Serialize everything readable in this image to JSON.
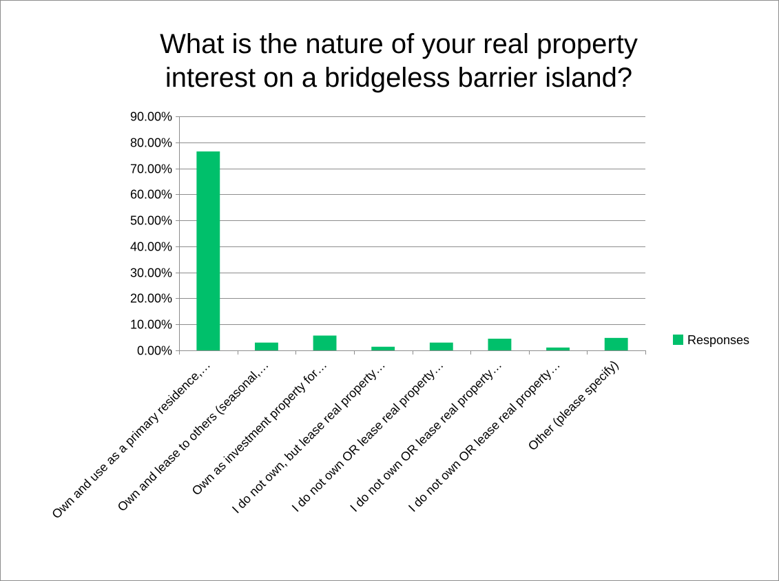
{
  "chart_data": {
    "type": "bar",
    "title": "What is the nature of your real property interest on a bridgeless barrier island?",
    "title_lines": [
      "What is the nature of your real property",
      "interest on a bridgeless barrier island?"
    ],
    "categories": [
      "Own and use as a primary residence,…",
      "Own and lease to others (seasonal,…",
      "Own as investment property for…",
      "I do not own, but lease real property…",
      "I do not own OR lease real property…",
      "I do not own OR lease real property…",
      "I do not own OR lease real property…",
      "Other (please specify)"
    ],
    "series": [
      {
        "name": "Responses",
        "values": [
          76.5,
          3.0,
          5.7,
          1.4,
          3.0,
          4.5,
          1.1,
          4.8
        ]
      }
    ],
    "ylim": [
      0,
      90
    ],
    "ytick_step": 10,
    "ytick_labels": [
      "0.00%",
      "10.00%",
      "20.00%",
      "30.00%",
      "40.00%",
      "50.00%",
      "60.00%",
      "70.00%",
      "80.00%",
      "90.00%"
    ],
    "grid": true,
    "legend_position": "right",
    "bar_color": "#00c06b",
    "xlabel": "",
    "ylabel": ""
  }
}
